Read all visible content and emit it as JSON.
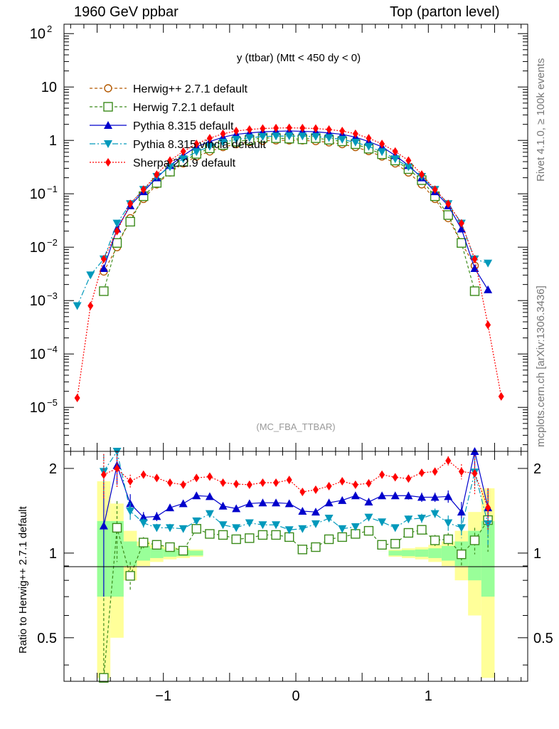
{
  "header": {
    "left": "1960 GeV ppbar",
    "right": "Top (parton level)",
    "side_top": "Rivet 4.1.0, ≥ 100k events",
    "side_bottom": "mcplots.cern.ch [arXiv:1306.3436]"
  },
  "chart_data": {
    "type": "line",
    "title": "y (ttbar) (Mtt < 450 dy < 0)",
    "watermark": "(MC_FBA_TTBAR)",
    "ylabel_ratio": "Ratio to Herwig++ 2.7.1 default",
    "x_ticks": [
      {
        "v": -1,
        "label": "−1"
      },
      {
        "v": 0,
        "label": "0"
      },
      {
        "v": 1,
        "label": "1"
      }
    ],
    "y_ticks_main": [
      {
        "v": 100,
        "base": "10",
        "exp": "2"
      },
      {
        "v": 10,
        "base": "10",
        "exp": ""
      },
      {
        "v": 1,
        "base": "1",
        "exp": ""
      },
      {
        "v": 0.1,
        "base": "10",
        "exp": "−1"
      },
      {
        "v": 0.01,
        "base": "10",
        "exp": "−2"
      },
      {
        "v": 0.001,
        "base": "10",
        "exp": "−3"
      },
      {
        "v": 0.0001,
        "base": "10",
        "exp": "−4"
      },
      {
        "v": 1e-05,
        "base": "10",
        "exp": "−5"
      }
    ],
    "y_ticks_ratio": [
      {
        "v": 2,
        "label": "2"
      },
      {
        "v": 1,
        "label": "1"
      },
      {
        "v": 0.5,
        "label": "0.5"
      }
    ],
    "xlim": [
      -1.75,
      1.75
    ],
    "ylim_main": [
      1.5e-06,
      150
    ],
    "ylim_ratio": [
      0.35,
      2.3
    ],
    "x": [
      -1.65,
      -1.55,
      -1.45,
      -1.35,
      -1.25,
      -1.15,
      -1.05,
      -0.95,
      -0.85,
      -0.75,
      -0.65,
      -0.55,
      -0.45,
      -0.35,
      -0.25,
      -0.15,
      -0.05,
      0.05,
      0.15,
      0.25,
      0.35,
      0.45,
      0.55,
      0.65,
      0.75,
      0.85,
      0.95,
      1.05,
      1.15,
      1.25,
      1.35,
      1.45,
      1.55,
      1.65
    ],
    "series": [
      {
        "name": "Herwig++ 2.7.1 default",
        "color": "#b35900",
        "dash": "4,3",
        "marker": "open-circle",
        "values": [
          null,
          null,
          0.0035,
          0.01,
          0.035,
          0.08,
          0.15,
          0.25,
          0.37,
          0.5,
          0.62,
          0.75,
          0.85,
          0.93,
          0.98,
          1.0,
          1.0,
          1.0,
          0.97,
          0.92,
          0.85,
          0.75,
          0.63,
          0.5,
          0.37,
          0.25,
          0.15,
          0.08,
          0.035,
          0.012,
          0.0045,
          null,
          null,
          null
        ],
        "ratio": [
          null,
          null,
          null,
          null,
          null,
          null,
          null,
          null,
          null,
          null,
          null,
          null,
          null,
          null,
          null,
          null,
          null,
          null,
          null,
          null,
          null,
          null,
          null,
          null,
          null,
          null,
          null,
          null,
          null,
          null,
          null,
          null,
          null,
          null
        ]
      },
      {
        "name": "Herwig 7.2.1 default",
        "color": "#3a8a1a",
        "dash": "4,3",
        "marker": "open-square",
        "values": [
          null,
          null,
          0.0015,
          0.012,
          0.03,
          0.09,
          0.16,
          0.26,
          0.4,
          0.56,
          0.71,
          0.82,
          0.95,
          1.02,
          1.12,
          1.1,
          1.08,
          1.05,
          1.1,
          1.03,
          0.96,
          0.85,
          0.7,
          0.55,
          0.42,
          0.29,
          0.18,
          0.09,
          0.04,
          0.012,
          0.0015,
          null,
          null,
          null
        ],
        "ratio": [
          null,
          null,
          0.36,
          1.23,
          0.83,
          1.09,
          1.07,
          1.05,
          1.02,
          1.22,
          1.17,
          1.16,
          1.12,
          1.13,
          1.16,
          1.16,
          1.14,
          1.03,
          1.05,
          1.12,
          1.14,
          1.17,
          1.2,
          1.07,
          1.08,
          1.18,
          1.21,
          1.11,
          1.12,
          0.99,
          1.11,
          1.31,
          null,
          null
        ],
        "ratio_err": [
          null,
          null,
          0.36,
          0.3,
          0.1,
          0.05,
          0.04,
          0.03,
          0.03,
          0.03,
          0.03,
          0.03,
          0.02,
          0.02,
          0.02,
          0.02,
          0.02,
          0.02,
          0.02,
          0.02,
          0.02,
          0.02,
          0.03,
          0.03,
          0.03,
          0.03,
          0.04,
          0.05,
          0.06,
          0.1,
          0.12,
          0.3,
          null,
          null
        ]
      },
      {
        "name": "Pythia 8.315 default",
        "color": "#0000cc",
        "dash": "",
        "marker": "filled-triangle-up",
        "values": [
          null,
          null,
          0.004,
          0.022,
          0.06,
          0.11,
          0.2,
          0.34,
          0.52,
          0.76,
          0.95,
          1.15,
          1.3,
          1.38,
          1.45,
          1.48,
          1.5,
          1.48,
          1.45,
          1.38,
          1.3,
          1.15,
          0.95,
          0.76,
          0.52,
          0.34,
          0.2,
          0.11,
          0.06,
          0.022,
          0.004,
          0.0016,
          null,
          null
        ],
        "ratio": [
          null,
          null,
          1.25,
          2.05,
          1.5,
          1.34,
          1.35,
          1.45,
          1.5,
          1.6,
          1.59,
          1.47,
          1.44,
          1.5,
          1.51,
          1.51,
          1.5,
          1.41,
          1.4,
          1.51,
          1.54,
          1.6,
          1.52,
          1.6,
          1.6,
          1.6,
          1.58,
          1.58,
          1.59,
          1.4,
          2.3,
          1.45,
          null,
          null
        ],
        "ratio_err": [
          null,
          null,
          0.55,
          0.3,
          0.12,
          0.06,
          0.05,
          0.04,
          0.04,
          0.03,
          0.03,
          0.03,
          0.03,
          0.03,
          0.02,
          0.02,
          0.02,
          0.02,
          0.02,
          0.02,
          0.03,
          0.03,
          0.03,
          0.04,
          0.04,
          0.05,
          0.06,
          0.06,
          0.08,
          0.12,
          0.3,
          0.25,
          null,
          null
        ]
      },
      {
        "name": "Pythia 8.315 vincia default",
        "color": "#0099bb",
        "dash": "8,3,2,3",
        "marker": "filled-triangle-down",
        "values": [
          0.0008,
          0.003,
          0.006,
          0.028,
          0.065,
          0.12,
          0.21,
          0.32,
          0.45,
          0.61,
          0.77,
          0.92,
          1.04,
          1.12,
          1.18,
          1.2,
          1.21,
          1.2,
          1.18,
          1.12,
          1.04,
          0.92,
          0.77,
          0.61,
          0.45,
          0.32,
          0.21,
          0.12,
          0.065,
          0.028,
          0.006,
          0.005,
          null,
          null
        ],
        "ratio": [
          null,
          null,
          1.95,
          2.3,
          1.41,
          1.28,
          1.23,
          1.23,
          1.22,
          1.3,
          1.38,
          1.26,
          1.23,
          1.28,
          1.26,
          1.26,
          1.21,
          1.22,
          1.27,
          1.33,
          1.22,
          1.24,
          1.34,
          1.29,
          1.23,
          1.32,
          1.33,
          1.38,
          1.28,
          1.23,
          1.94,
          1.27,
          null,
          null
        ],
        "ratio_err": [
          null,
          null,
          0.3,
          0.3,
          0.1,
          0.05,
          0.04,
          0.04,
          0.03,
          0.03,
          0.03,
          0.03,
          0.02,
          0.02,
          0.02,
          0.02,
          0.02,
          0.02,
          0.02,
          0.02,
          0.02,
          0.03,
          0.03,
          0.03,
          0.03,
          0.04,
          0.05,
          0.06,
          0.08,
          0.1,
          0.25,
          0.2,
          null,
          null
        ]
      },
      {
        "name": "Sherpa 2.2.9 default",
        "color": "#ff0000",
        "dash": "2,2",
        "marker": "filled-diamond",
        "values": [
          1.5e-05,
          0.0008,
          0.006,
          0.02,
          0.065,
          0.12,
          0.23,
          0.42,
          0.62,
          0.86,
          1.1,
          1.33,
          1.5,
          1.6,
          1.67,
          1.7,
          1.72,
          1.7,
          1.67,
          1.6,
          1.5,
          1.33,
          1.1,
          0.86,
          0.62,
          0.42,
          0.23,
          0.12,
          0.065,
          0.028,
          0.006,
          0.00035,
          1.6e-05,
          null
        ],
        "ratio": [
          null,
          null,
          1.9,
          2.0,
          1.8,
          1.9,
          1.85,
          1.78,
          1.75,
          1.85,
          1.87,
          1.78,
          1.76,
          1.75,
          1.78,
          1.78,
          1.82,
          1.65,
          1.68,
          1.73,
          1.8,
          1.75,
          1.77,
          1.9,
          1.86,
          1.84,
          1.93,
          1.95,
          2.13,
          1.95,
          1.92,
          1.45,
          null,
          null
        ],
        "ratio_err": [
          null,
          null,
          0.35,
          0.3,
          0.1,
          0.06,
          0.05,
          0.04,
          0.04,
          0.03,
          0.03,
          0.03,
          0.03,
          0.03,
          0.02,
          0.02,
          0.02,
          0.02,
          0.02,
          0.02,
          0.03,
          0.03,
          0.03,
          0.04,
          0.04,
          0.05,
          0.06,
          0.06,
          0.08,
          0.12,
          0.3,
          0.25,
          null,
          null
        ]
      }
    ],
    "band": {
      "x": [
        -1.45,
        -1.35,
        -1.25,
        -1.15,
        -1.05,
        -0.95,
        -0.85,
        -0.75,
        0.75,
        0.85,
        0.95,
        1.05,
        1.15,
        1.25,
        1.35,
        1.45
      ],
      "green": [
        0.3,
        0.3,
        0.1,
        0.06,
        0.04,
        0.03,
        0.025,
        0.02,
        0.02,
        0.025,
        0.03,
        0.04,
        0.06,
        0.1,
        0.2,
        0.3
      ],
      "yellow": [
        0.8,
        0.5,
        0.2,
        0.1,
        0.07,
        0.05,
        0.04,
        0.03,
        0.03,
        0.04,
        0.05,
        0.07,
        0.1,
        0.2,
        0.4,
        0.7
      ]
    }
  }
}
